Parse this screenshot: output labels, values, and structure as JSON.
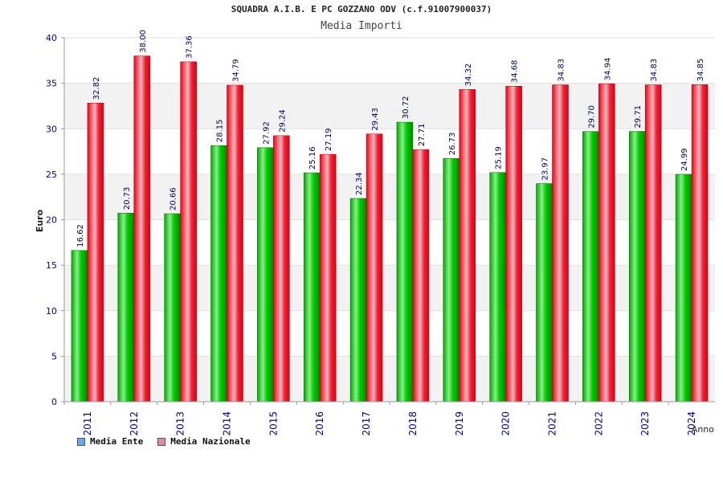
{
  "chart_data": {
    "type": "bar",
    "title": "SQUADRA A.I.B. E PC GOZZANO ODV (c.f.91007900037)",
    "subtitle": "Media Importi",
    "xlabel": "Anno",
    "ylabel": "Euro",
    "ylim": [
      0,
      40
    ],
    "yticks": [
      0,
      5,
      10,
      15,
      20,
      25,
      30,
      35,
      40
    ],
    "grid": true,
    "legend_position": "bottom-left",
    "categories": [
      "2011",
      "2012",
      "2013",
      "2014",
      "2015",
      "2016",
      "2017",
      "2018",
      "2019",
      "2020",
      "2021",
      "2022",
      "2023",
      "2024"
    ],
    "series": [
      {
        "name": "Media Ente",
        "color": "#00bb00",
        "legend_color": "#66aaee",
        "values": [
          16.62,
          20.73,
          20.66,
          28.15,
          27.92,
          25.16,
          22.34,
          30.72,
          26.73,
          25.19,
          23.97,
          29.7,
          29.71,
          24.99
        ],
        "labels": [
          "16.62",
          "20.73",
          "20.66",
          "28.15",
          "27.92",
          "25.16",
          "22.34",
          "30.72",
          "26.73",
          "25.19",
          "23.97",
          "29.70",
          "29.71",
          "24.99"
        ]
      },
      {
        "name": "Media Nazionale",
        "color": "#ee0022",
        "legend_color": "#dd88aa",
        "values": [
          32.82,
          38.0,
          37.36,
          34.79,
          29.24,
          27.19,
          29.43,
          27.71,
          34.32,
          34.68,
          34.83,
          34.94,
          34.83,
          34.85
        ],
        "labels": [
          "32.82",
          "38.00",
          "37.36",
          "34.79",
          "29.24",
          "27.19",
          "29.43",
          "27.71",
          "34.32",
          "34.68",
          "34.83",
          "34.94",
          "34.83",
          "34.85"
        ]
      }
    ]
  }
}
